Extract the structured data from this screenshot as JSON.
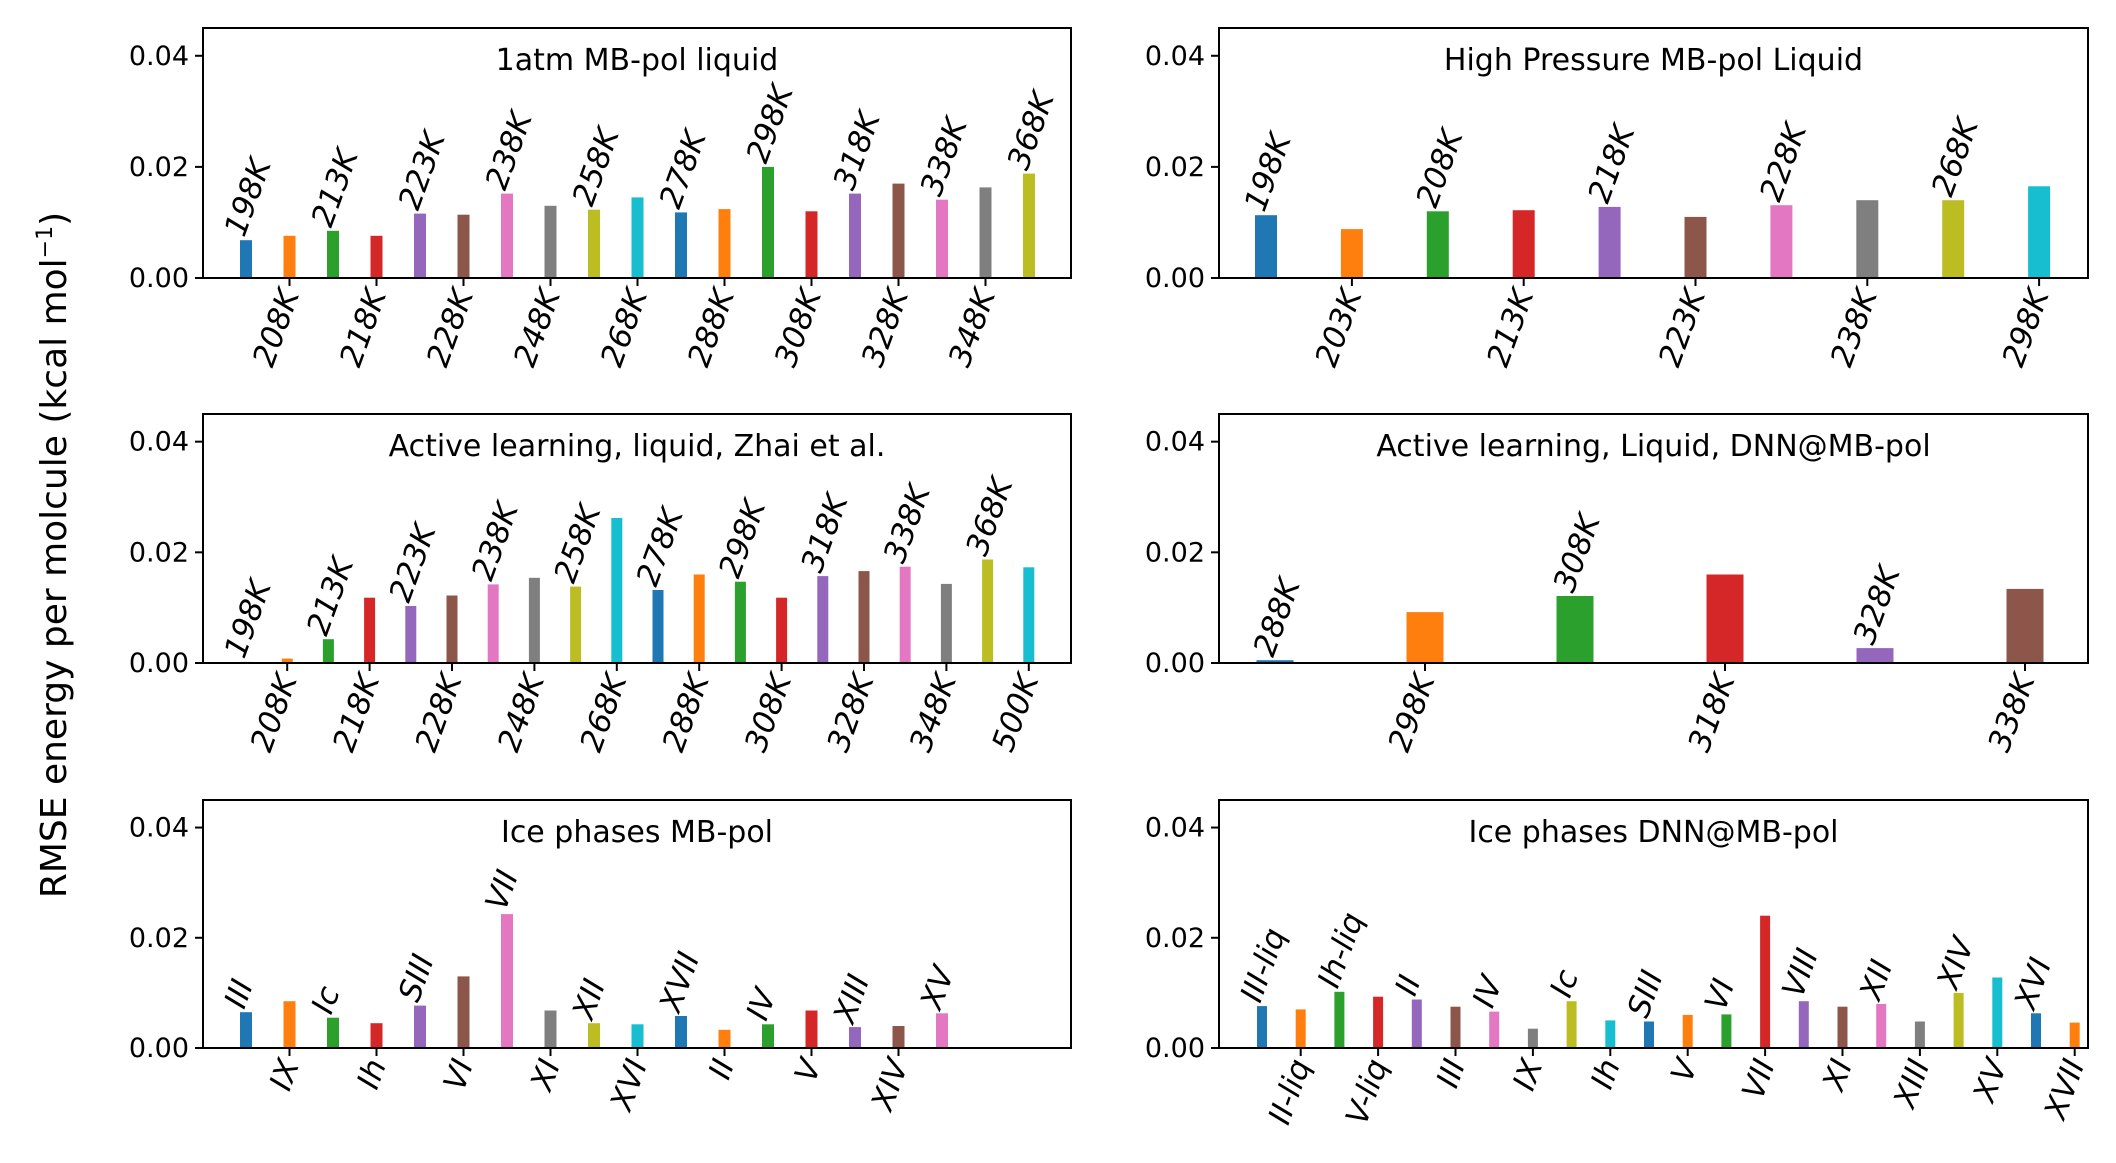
{
  "figure": {
    "ylabel_main": "RMSE energy per molcule (kcal mol",
    "ylabel_sup": "−1",
    "ylabel_close": ")"
  },
  "yaxis": {
    "ylim": [
      0,
      0.045
    ],
    "ticks": [
      "0.00",
      "0.02",
      "0.04"
    ],
    "tick_values": [
      0,
      0.02,
      0.04
    ]
  },
  "colors": [
    "#1f77b4",
    "#ff7f0e",
    "#2ca02c",
    "#d62728",
    "#9467bd",
    "#8c564b",
    "#e377c2",
    "#7f7f7f",
    "#bcbd22",
    "#17becf"
  ],
  "chart_data": [
    {
      "type": "bar",
      "title": "1atm MB-pol liquid",
      "categories": [
        "198K",
        "208K",
        "213K",
        "218K",
        "223K",
        "228K",
        "238K",
        "248K",
        "258K",
        "268K",
        "278K",
        "288K",
        "298K",
        "308K",
        "318K",
        "328K",
        "338K",
        "348K",
        "368K"
      ],
      "values": [
        0.0068,
        0.0076,
        0.0085,
        0.0076,
        0.0116,
        0.0114,
        0.0152,
        0.013,
        0.0123,
        0.0145,
        0.0118,
        0.0124,
        0.02,
        0.012,
        0.0152,
        0.017,
        0.0141,
        0.0163,
        0.0188
      ],
      "ylim": [
        0,
        0.045
      ]
    },
    {
      "type": "bar",
      "title": "High Pressure MB-pol Liquid",
      "categories": [
        "198K",
        "203K",
        "208K",
        "213K",
        "218K",
        "223K",
        "228K",
        "238K",
        "268K",
        "298K"
      ],
      "values": [
        0.0113,
        0.0088,
        0.012,
        0.0122,
        0.0128,
        0.011,
        0.0131,
        0.014,
        0.014,
        0.0165
      ],
      "ylim": [
        0,
        0.045
      ]
    },
    {
      "type": "bar",
      "title": "Active learning, liquid, Zhai et al.",
      "categories": [
        "198K",
        "208K",
        "213K",
        "218K",
        "223K",
        "228K",
        "238K",
        "248K",
        "258K",
        "268K",
        "278K",
        "288K",
        "298K",
        "308K",
        "318K",
        "328K",
        "338K",
        "348K",
        "368K",
        "500K"
      ],
      "values": [
        0.0002,
        0.0008,
        0.0043,
        0.0118,
        0.0103,
        0.0122,
        0.0142,
        0.0154,
        0.0138,
        0.0262,
        0.0132,
        0.016,
        0.0147,
        0.0118,
        0.0157,
        0.0166,
        0.0174,
        0.0143,
        0.0187,
        0.0173
      ],
      "ylim": [
        0,
        0.045
      ]
    },
    {
      "type": "bar",
      "title": "Active learning, Liquid, DNN@MB-pol",
      "categories": [
        "288K",
        "298K",
        "308K",
        "318K",
        "328K",
        "338K"
      ],
      "values": [
        0.0005,
        0.0092,
        0.0121,
        0.016,
        0.0027,
        0.0134
      ],
      "ylim": [
        0,
        0.045
      ]
    },
    {
      "type": "bar",
      "title": "Ice phases MB-pol",
      "categories": [
        "III",
        "IX",
        "Ic",
        "Ih",
        "SIII",
        "VI",
        "VII",
        "XI",
        "XII",
        "XVI",
        "XVII",
        "II",
        "IV",
        "V",
        "XIII",
        "XIV",
        "XV"
      ],
      "values": [
        0.0065,
        0.0085,
        0.0055,
        0.0045,
        0.0077,
        0.013,
        0.0243,
        0.0068,
        0.0045,
        0.0043,
        0.0058,
        0.0033,
        0.0043,
        0.0068,
        0.0038,
        0.004,
        0.0063
      ],
      "ylim": [
        0,
        0.045
      ]
    },
    {
      "type": "bar",
      "title": "Ice phases DNN@MB-pol",
      "categories": [
        "III-liq",
        "II-liq",
        "Ih-liq",
        "V-liq",
        "II",
        "III",
        "IV",
        "IX",
        "Ic",
        "Ih",
        "SIII",
        "V",
        "VI",
        "VII",
        "VIII",
        "XI",
        "XII",
        "XIII",
        "XIV",
        "XV",
        "XVI",
        "XVII"
      ],
      "values": [
        0.0076,
        0.007,
        0.0102,
        0.0093,
        0.0088,
        0.0075,
        0.0066,
        0.0035,
        0.0085,
        0.005,
        0.0048,
        0.006,
        0.0061,
        0.024,
        0.0085,
        0.0075,
        0.008,
        0.0048,
        0.01,
        0.0128,
        0.0063,
        0.0046
      ],
      "ylim": [
        0,
        0.045
      ]
    }
  ]
}
